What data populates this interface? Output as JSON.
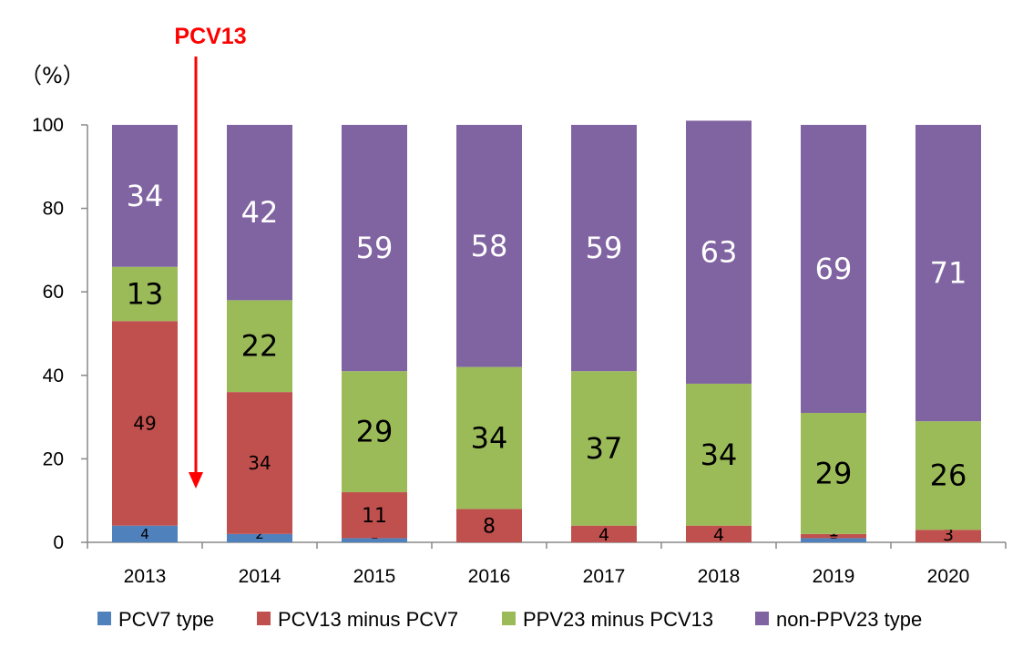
{
  "chart_data": {
    "type": "bar",
    "stacked": true,
    "unit_label": "（%）",
    "categories": [
      "2013",
      "2014",
      "2015",
      "2016",
      "2017",
      "2018",
      "2019",
      "2020"
    ],
    "series": [
      {
        "name": "PCV7 type",
        "color": "#4f81bd",
        "values": [
          4,
          2,
          1,
          0,
          0,
          0,
          1,
          0
        ]
      },
      {
        "name": "PCV13 minus PCV7",
        "color": "#c0504d",
        "values": [
          49,
          34,
          11,
          8,
          4,
          4,
          1,
          3
        ]
      },
      {
        "name": "PPV23 minus PCV13",
        "color": "#9bbb59",
        "values": [
          13,
          22,
          29,
          34,
          37,
          34,
          29,
          26
        ]
      },
      {
        "name": "non-PPV23 type",
        "color": "#8064a2",
        "values": [
          34,
          42,
          59,
          58,
          59,
          63,
          69,
          71
        ]
      }
    ],
    "ylim": [
      0,
      100
    ],
    "yticks": [
      0,
      20,
      40,
      60,
      80,
      100
    ],
    "grid": false,
    "legend_position": "bottom",
    "annotation": {
      "text": "PCV13",
      "color": "#ff0000",
      "between": [
        "2013",
        "2014"
      ]
    }
  }
}
